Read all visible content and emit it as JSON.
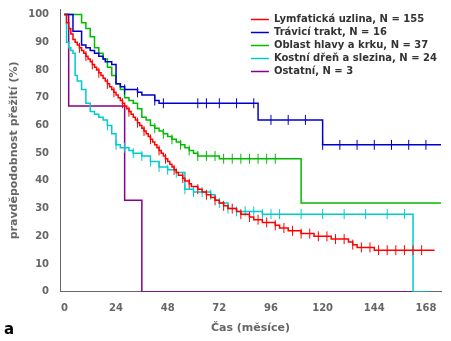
{
  "chart_data": {
    "type": "line",
    "xlabel": "Čas (měsíce)",
    "ylabel": "pravděpodobnost přežití (%)",
    "annotations": [
      "a"
    ],
    "xlim": [
      -2,
      175
    ],
    "ylim": [
      0,
      102
    ],
    "xticks": [
      0,
      24,
      48,
      72,
      96,
      120,
      144,
      168
    ],
    "yticks": [
      0,
      10,
      20,
      30,
      40,
      50,
      60,
      70,
      80,
      90,
      100
    ],
    "grid": false,
    "legend": "upper right",
    "series": [
      {
        "name": "Lymfatická uzlina, N = 155",
        "color": "#ff0000",
        "line_style": "step",
        "marker": "|",
        "x": [
          0,
          1,
          2,
          3,
          4,
          5,
          6,
          7,
          8,
          9,
          10,
          11,
          12,
          13,
          14,
          15,
          16,
          17,
          18,
          19,
          20,
          21,
          22,
          23,
          24,
          25,
          26,
          27,
          28,
          29,
          30,
          31,
          32,
          33,
          34,
          35,
          36,
          37,
          38,
          39,
          40,
          41,
          42,
          43,
          44,
          45,
          46,
          47,
          48,
          49,
          50,
          51,
          52,
          53,
          54,
          55,
          56,
          57,
          58,
          59,
          60,
          62,
          64,
          66,
          68,
          70,
          72,
          74,
          76,
          78,
          80,
          82,
          84,
          86,
          88,
          90,
          92,
          94,
          96,
          98,
          100,
          102,
          104,
          106,
          108,
          110,
          112,
          114,
          116,
          118,
          120,
          122,
          124,
          126,
          128,
          130,
          132,
          134,
          136,
          138,
          140,
          144,
          148,
          152,
          156,
          160,
          164,
          168,
          172
        ],
        "values": [
          100,
          97,
          95,
          93,
          91,
          90,
          89,
          88,
          87,
          86,
          85,
          84,
          83,
          82,
          81,
          80,
          79,
          78,
          77,
          76,
          75,
          74,
          73,
          72,
          71,
          70,
          69,
          68,
          67,
          66,
          65,
          64,
          63,
          62,
          61,
          60,
          59,
          58,
          57,
          56,
          55,
          54,
          53,
          52,
          51,
          50,
          49,
          48,
          47,
          46,
          45,
          44,
          43,
          42,
          42,
          41,
          40,
          40,
          39,
          38,
          38,
          37,
          36,
          35,
          34,
          33,
          32,
          31,
          30,
          30,
          29,
          28,
          28,
          27,
          26,
          26,
          25,
          25,
          25,
          24,
          23,
          23,
          22,
          22,
          22,
          21,
          21,
          21,
          20,
          20,
          20,
          20,
          19,
          19,
          19,
          19,
          18,
          17,
          16,
          16,
          16,
          15,
          15,
          15,
          15,
          15,
          15,
          15,
          15
        ],
        "censor_x": [
          7,
          10,
          13,
          16,
          20,
          23,
          27,
          30,
          34,
          37,
          40,
          44,
          47,
          51,
          55,
          58,
          62,
          66,
          70,
          74,
          78,
          82,
          86,
          90,
          94,
          98,
          102,
          106,
          110,
          114,
          118,
          122,
          126,
          130,
          134,
          138,
          142,
          146,
          150,
          154,
          158,
          162,
          166
        ],
        "censor_y": [
          88,
          85,
          82,
          79,
          75,
          72,
          68,
          65,
          61,
          58,
          55,
          51,
          48,
          44,
          41,
          39,
          37,
          35,
          33,
          31,
          30,
          28,
          27,
          26,
          25,
          24,
          23,
          22,
          21,
          21,
          20,
          20,
          19,
          19,
          17,
          16,
          16,
          15,
          15,
          15,
          15,
          15,
          15
        ]
      },
      {
        "name": "Trávicí trakt, N = 16",
        "color": "#0000cc",
        "line_style": "step",
        "marker": "|",
        "x": [
          0,
          2,
          4,
          6,
          8,
          10,
          12,
          14,
          16,
          18,
          19,
          22,
          24,
          26,
          28,
          34,
          36,
          42,
          44,
          46,
          60,
          62,
          64,
          66,
          70,
          90,
          92,
          100,
          108,
          116,
          120,
          125,
          130,
          135,
          140,
          145,
          150,
          155,
          160,
          165,
          170,
          175
        ],
        "values": [
          100,
          100,
          94,
          94,
          89,
          88,
          87,
          86,
          85,
          84,
          83,
          82,
          75,
          74,
          73,
          72,
          71,
          69,
          68,
          68,
          68,
          68,
          68,
          68,
          68,
          62,
          62,
          62,
          62,
          62,
          53,
          53,
          53,
          53,
          53,
          53,
          53,
          53,
          53,
          53,
          53,
          53
        ],
        "censor_x": [
          28,
          34,
          42,
          46,
          62,
          66,
          72,
          80,
          88,
          96,
          104,
          112,
          120,
          128,
          136,
          144,
          152,
          160,
          168
        ],
        "censor_y": [
          73,
          72,
          69,
          68,
          68,
          68,
          68,
          68,
          68,
          62,
          62,
          62,
          53,
          53,
          53,
          53,
          53,
          53,
          53
        ]
      },
      {
        "name": "Oblast hlavy a krku, N = 37",
        "color": "#00bb00",
        "line_style": "step",
        "marker": "|",
        "x": [
          0,
          1,
          2,
          4,
          6,
          8,
          10,
          12,
          14,
          16,
          18,
          20,
          22,
          24,
          26,
          28,
          30,
          32,
          34,
          36,
          38,
          40,
          42,
          44,
          46,
          48,
          50,
          52,
          54,
          56,
          58,
          60,
          62,
          64,
          66,
          68,
          70,
          72,
          74,
          80,
          88,
          90,
          95,
          100,
          110,
          120,
          130,
          140,
          150,
          160,
          170,
          175
        ],
        "values": [
          100,
          100,
          100,
          100,
          100,
          97,
          95,
          92,
          88,
          86,
          84,
          81,
          78,
          75,
          73,
          70,
          69,
          68,
          66,
          63,
          62,
          60,
          59,
          58,
          57,
          56,
          55,
          54,
          53,
          52,
          51,
          50,
          49,
          49,
          49,
          49,
          49,
          48,
          48,
          48,
          48,
          48,
          48,
          48,
          32,
          32,
          32,
          32,
          32,
          32,
          32,
          32
        ],
        "censor_x": [
          42,
          46,
          50,
          54,
          58,
          62,
          66,
          70,
          74,
          78,
          82,
          86,
          90,
          94,
          98
        ],
        "censor_y": [
          59,
          57,
          55,
          53,
          51,
          49,
          49,
          49,
          48,
          48,
          48,
          48,
          48,
          48,
          48
        ]
      },
      {
        "name": "Kostní dřeň a slezina, N = 24",
        "color": "#00cccc",
        "line_style": "step",
        "marker": "|",
        "x": [
          0,
          1,
          2,
          3,
          4,
          5,
          6,
          8,
          10,
          12,
          14,
          16,
          18,
          20,
          22,
          24,
          26,
          28,
          30,
          32,
          36,
          40,
          44,
          48,
          52,
          56,
          60,
          64,
          68,
          70,
          72,
          76,
          80,
          84,
          88,
          92,
          96,
          100,
          110,
          120,
          130,
          140,
          150,
          160,
          162,
          164,
          170
        ],
        "values": [
          100,
          90,
          88,
          87,
          86,
          78,
          76,
          73,
          68,
          65,
          64,
          63,
          62,
          60,
          57,
          53,
          52,
          52,
          51,
          50,
          49,
          47,
          45,
          44,
          43,
          37,
          36,
          36,
          35,
          33,
          32,
          30,
          29,
          29,
          29,
          28,
          28,
          28,
          28,
          28,
          28,
          28,
          28,
          28,
          0,
          0,
          0
        ],
        "censor_x": [
          20,
          24,
          28,
          32,
          36,
          40,
          44,
          48,
          52,
          56,
          60,
          64,
          68,
          72,
          76,
          80,
          84,
          88,
          92,
          96,
          100,
          110,
          120,
          130,
          140,
          150,
          158
        ],
        "censor_y": [
          60,
          53,
          52,
          50,
          49,
          47,
          45,
          44,
          43,
          37,
          36,
          36,
          35,
          32,
          30,
          29,
          29,
          29,
          28,
          28,
          28,
          28,
          28,
          28,
          28,
          28,
          28
        ]
      },
      {
        "name": "Ostatní, N = 3",
        "color": "#880088",
        "line_style": "step",
        "x": [
          0,
          1,
          2,
          4,
          5,
          26,
          28,
          32,
          34,
          35,
          36,
          170
        ],
        "values": [
          100,
          100,
          67,
          67,
          67,
          67,
          33,
          33,
          33,
          33,
          0,
          0
        ]
      }
    ]
  }
}
